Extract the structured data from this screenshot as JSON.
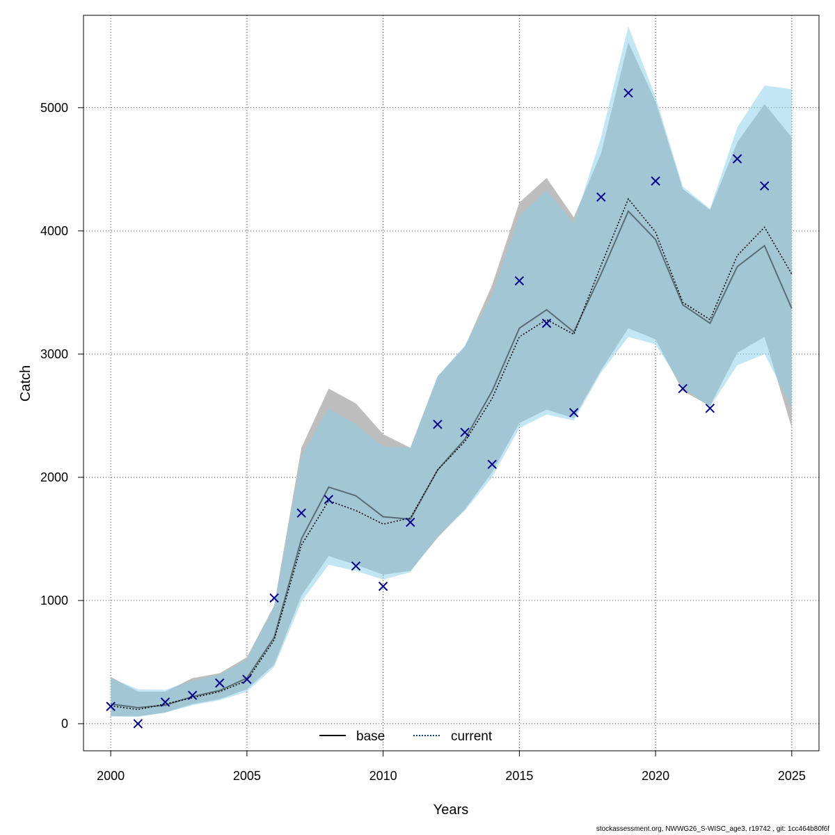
{
  "chart_data": {
    "type": "line",
    "xlabel": "Years",
    "ylabel": "Catch",
    "xlim": [
      1999,
      2026
    ],
    "ylim": [
      -220,
      5750
    ],
    "x_ticks": [
      2000,
      2005,
      2010,
      2015,
      2020,
      2025
    ],
    "y_ticks": [
      0,
      1000,
      2000,
      3000,
      4000,
      5000
    ],
    "grid": true,
    "legend_position": "bottom",
    "colors": {
      "base_band": "#bebebe",
      "current_band": "#87ceeb",
      "base_line": "#000000",
      "current_line": "#104e8b",
      "observed": "#00008b"
    },
    "x": [
      2000,
      2001,
      2002,
      2003,
      2004,
      2005,
      2006,
      2007,
      2008,
      2009,
      2010,
      2011,
      2012,
      2013,
      2014,
      2015,
      2016,
      2017,
      2018,
      2019,
      2020,
      2021,
      2022,
      2023,
      2024,
      2025
    ],
    "series": [
      {
        "name": "base",
        "style": "solid",
        "values": [
          160,
          130,
          150,
          220,
          270,
          370,
          700,
          1500,
          1920,
          1850,
          1680,
          1660,
          2060,
          2310,
          2700,
          3210,
          3360,
          3180,
          3650,
          4160,
          3930,
          3400,
          3250,
          3710,
          3880,
          3370
        ],
        "lower": [
          60,
          60,
          90,
          160,
          200,
          280,
          480,
          1040,
          1360,
          1290,
          1210,
          1240,
          1510,
          1740,
          2040,
          2440,
          2550,
          2480,
          2870,
          3210,
          3120,
          2700,
          2580,
          3010,
          3140,
          2400
        ],
        "upper": [
          380,
          260,
          260,
          370,
          410,
          540,
          960,
          2240,
          2720,
          2600,
          2350,
          2240,
          2820,
          3060,
          3560,
          4230,
          4430,
          4110,
          4630,
          5530,
          5050,
          4340,
          4170,
          4720,
          5030,
          4760
        ]
      },
      {
        "name": "current",
        "style": "dotted",
        "values": [
          145,
          115,
          160,
          210,
          260,
          350,
          680,
          1450,
          1810,
          1730,
          1620,
          1670,
          2060,
          2290,
          2640,
          3140,
          3280,
          3160,
          3720,
          4260,
          3990,
          3420,
          3280,
          3800,
          4030,
          3650
        ],
        "lower": [
          60,
          55,
          90,
          150,
          190,
          260,
          460,
          990,
          1290,
          1240,
          1170,
          1230,
          1520,
          1730,
          2000,
          2400,
          2510,
          2460,
          2850,
          3140,
          3080,
          2730,
          2570,
          2910,
          3000,
          2570
        ],
        "upper": [
          370,
          280,
          275,
          350,
          400,
          520,
          950,
          2170,
          2560,
          2430,
          2250,
          2240,
          2820,
          3070,
          3480,
          4120,
          4330,
          4060,
          4760,
          5660,
          5090,
          4360,
          4180,
          4840,
          5180,
          5150
        ]
      }
    ],
    "observed": {
      "marker": "x",
      "values": [
        140,
        0,
        175,
        230,
        330,
        360,
        1020,
        1710,
        1820,
        1280,
        1115,
        1635,
        2430,
        2365,
        2105,
        3595,
        3250,
        2525,
        4275,
        5120,
        4405,
        2720,
        2560,
        4585,
        4365
      ]
    }
  },
  "legend": {
    "items": [
      {
        "label": "base"
      },
      {
        "label": "current"
      }
    ]
  },
  "footer": "stockassessment.org, NWWG26_S-WISC_age3, r19742 , git: 1cc464b80f6f"
}
